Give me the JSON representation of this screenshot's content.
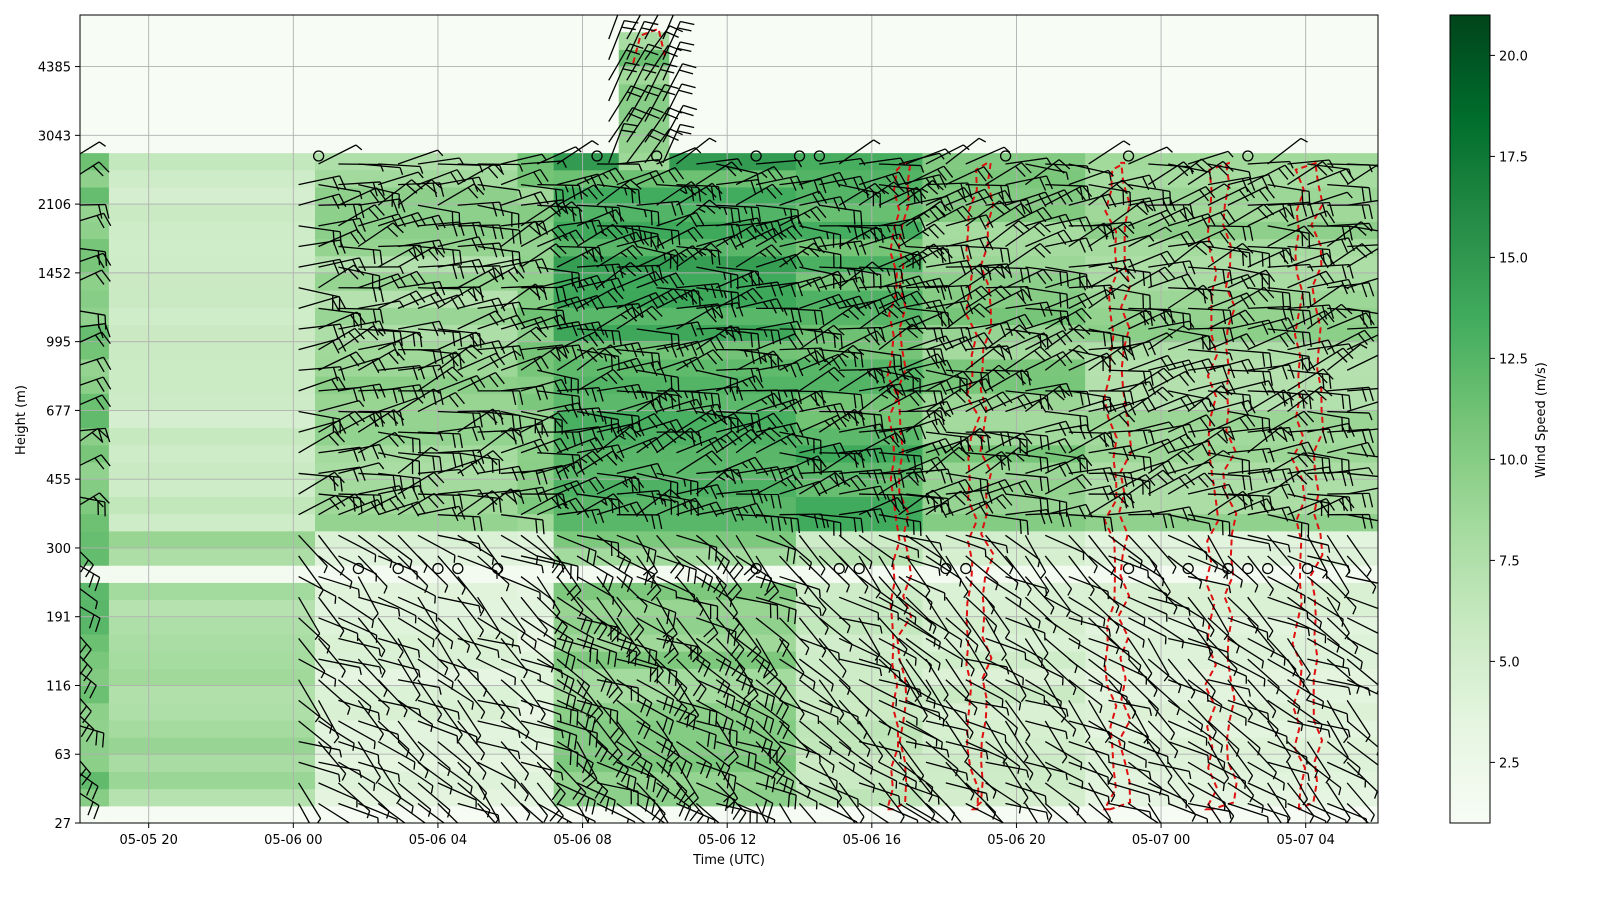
{
  "chart_data": {
    "type": "heatmap",
    "overlay": "wind-barbs",
    "title": "",
    "xlabel": "Time (UTC)",
    "ylabel": "Height (m)",
    "x_tick_labels": [
      "05-05 20",
      "05-06 00",
      "05-06 04",
      "05-06 08",
      "05-06 12",
      "05-06 16",
      "05-06 20",
      "05-07 00",
      "05-07 04"
    ],
    "x_ticks_hours_from_05_05_20": [
      0,
      4,
      8,
      12,
      16,
      20,
      24,
      28,
      32
    ],
    "xlim_hours_from_05_05_20": [
      -1.9,
      34.0
    ],
    "y_tick_labels": [
      "27",
      "63",
      "116",
      "191",
      "300",
      "455",
      "677",
      "995",
      "1452",
      "2106",
      "3043",
      "4385"
    ],
    "ylim_level_index": [
      0,
      11.75
    ],
    "grid": true,
    "colormap": "Greens",
    "colorbar": {
      "label": "Wind Speed (m/s)",
      "range": [
        1.0,
        21.0
      ],
      "tick_labels": [
        "2.5",
        "5.0",
        "7.5",
        "10.0",
        "12.5",
        "15.0",
        "17.5",
        "20.0"
      ],
      "tick_values": [
        2.5,
        5.0,
        7.5,
        10.0,
        12.5,
        15.0,
        17.5,
        20.0
      ],
      "low_color": "#f7fcf5",
      "high_color": "#00441b"
    },
    "segments": [
      {
        "t": [
          -1.9,
          -1.1
        ],
        "low": 11.0,
        "up": 10.5
      },
      {
        "t": [
          -1.1,
          4.6
        ],
        "low": 8.0,
        "up": 5.5
      },
      {
        "t": [
          4.6,
          10.2
        ],
        "low": 4.0,
        "up": 8.5
      },
      {
        "t": [
          10.2,
          11.2
        ],
        "low": 3.5,
        "up": 10.0
      },
      {
        "t": [
          11.2,
          17.9
        ],
        "low": 9.5,
        "up": 13.0
      },
      {
        "t": [
          17.9,
          21.4
        ],
        "low": 6.0,
        "up": 12.5
      },
      {
        "t": [
          21.4,
          25.9
        ],
        "low": 5.0,
        "up": 9.5
      },
      {
        "t": [
          25.9,
          34.0
        ],
        "low": 4.0,
        "up": 8.5
      }
    ],
    "upper_jet": {
      "t": [
        13.0,
        14.4
      ],
      "top_level": 11.3,
      "speed": 11.0
    },
    "barb_color": "#000000",
    "contour_color": "#e01010",
    "contour_style": "dashed"
  }
}
